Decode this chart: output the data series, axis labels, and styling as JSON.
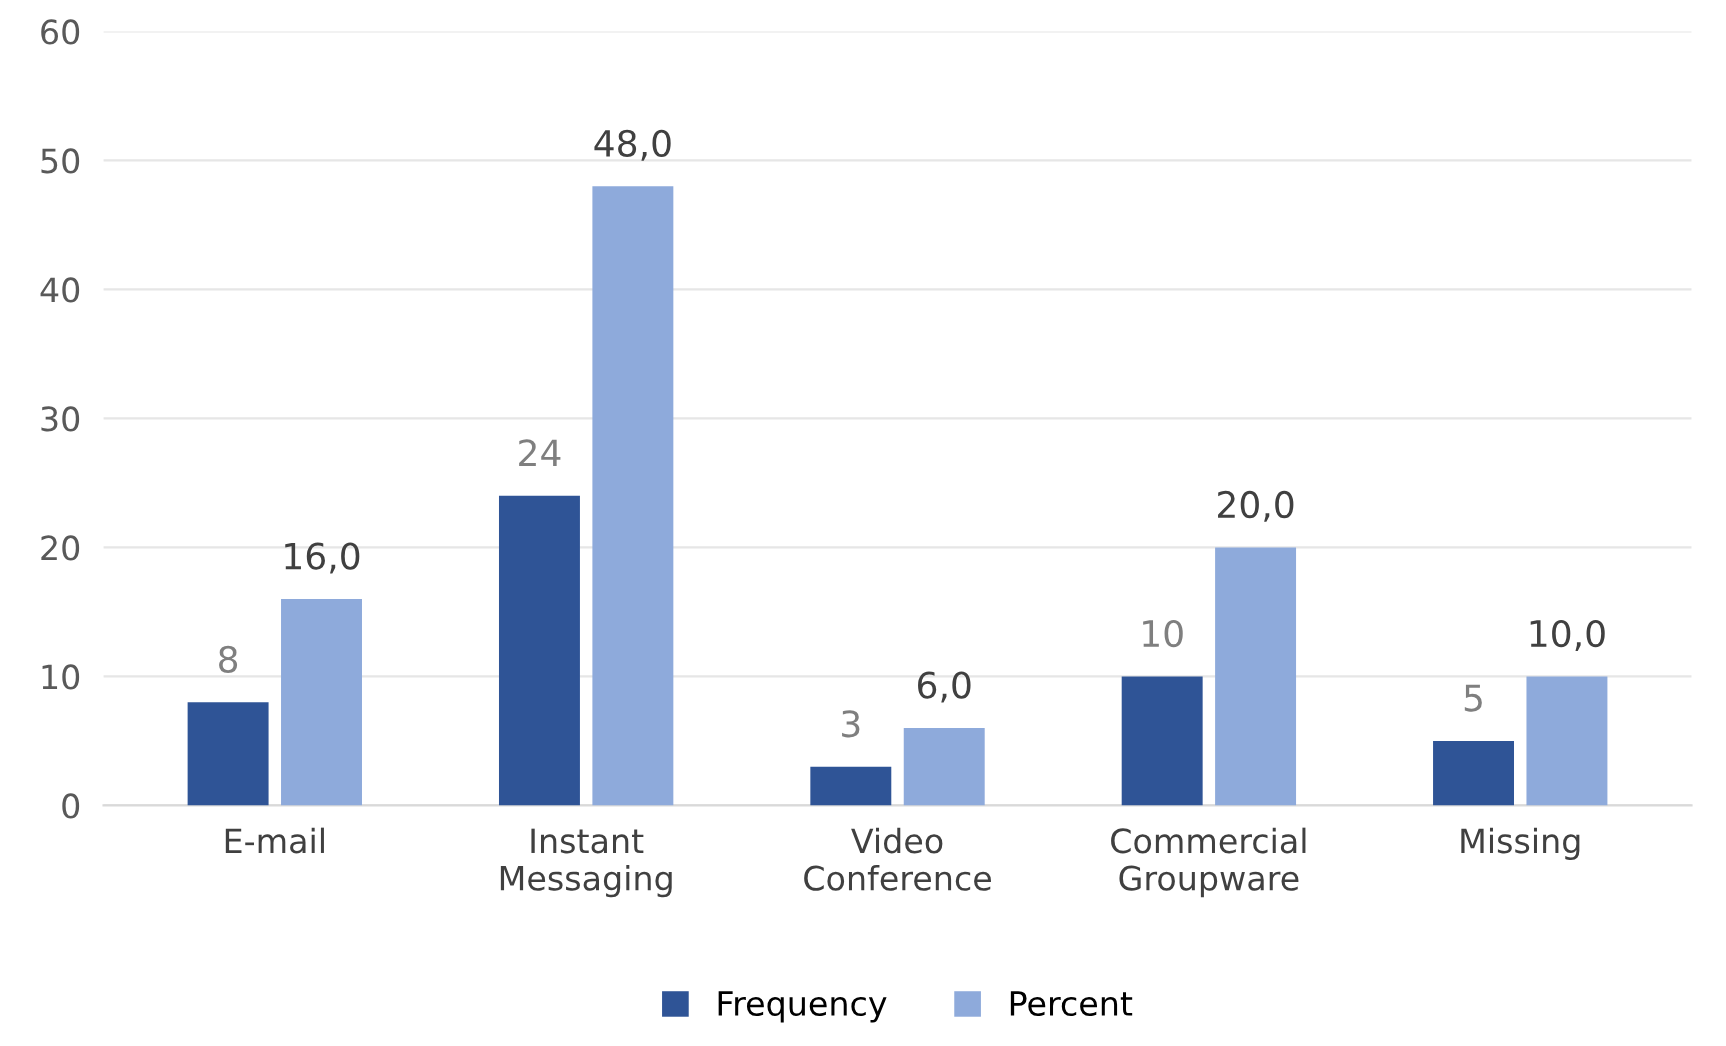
{
  "chart_data": {
    "type": "bar",
    "categories": [
      "E-mail",
      "Instant\nMessaging",
      "Video\nConference",
      "Commercial\nGroupware",
      "Missing"
    ],
    "series": [
      {
        "name": "Frequency",
        "color": "#2f5496",
        "values": [
          8,
          24,
          3,
          10,
          5
        ],
        "value_labels": [
          "8",
          "24",
          "3",
          "10",
          "5"
        ]
      },
      {
        "name": "Percent",
        "color": "#8eaadb",
        "values": [
          16.0,
          48.0,
          6.0,
          20.0,
          10.0
        ],
        "value_labels": [
          "16,0",
          "48,0",
          "6,0",
          "20,0",
          "10,0"
        ]
      }
    ],
    "ylim": [
      0,
      60
    ],
    "yticks": [
      0,
      10,
      20,
      30,
      40,
      50,
      60
    ],
    "grid": "y",
    "legend": "bottom"
  }
}
